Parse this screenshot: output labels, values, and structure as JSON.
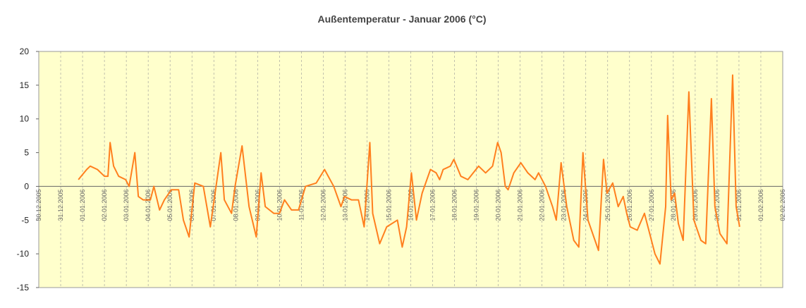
{
  "chart_data": {
    "type": "line",
    "title": "Außentemperatur - Januar 2006 (°C)",
    "ylim": [
      -15,
      20
    ],
    "yticks": [
      -15,
      -10,
      -5,
      0,
      5,
      10,
      15,
      20
    ],
    "xlim": [
      0,
      34
    ],
    "xticks": [
      {
        "value": 0,
        "label": "30.12.2005"
      },
      {
        "value": 1,
        "label": "31.12.2005"
      },
      {
        "value": 2,
        "label": "01.01.2006"
      },
      {
        "value": 3,
        "label": "02.01.2006"
      },
      {
        "value": 4,
        "label": "03.01.2006"
      },
      {
        "value": 5,
        "label": "04.01.2006"
      },
      {
        "value": 6,
        "label": "05.01.2006"
      },
      {
        "value": 7,
        "label": "06.01.2006"
      },
      {
        "value": 8,
        "label": "07.01.2006"
      },
      {
        "value": 9,
        "label": "08.01.2006"
      },
      {
        "value": 10,
        "label": "09.01.2006"
      },
      {
        "value": 11,
        "label": "10.01.2006"
      },
      {
        "value": 12,
        "label": "11.01.2006"
      },
      {
        "value": 13,
        "label": "12.01.2006"
      },
      {
        "value": 14,
        "label": "13.01.2006"
      },
      {
        "value": 15,
        "label": "14.01.2006"
      },
      {
        "value": 16,
        "label": "15.01.2006"
      },
      {
        "value": 17,
        "label": "16.01.2006"
      },
      {
        "value": 18,
        "label": "17.01.2006"
      },
      {
        "value": 19,
        "label": "18.01.2006"
      },
      {
        "value": 20,
        "label": "19.01.2006"
      },
      {
        "value": 21,
        "label": "20.01.2006"
      },
      {
        "value": 22,
        "label": "21.01.2006"
      },
      {
        "value": 23,
        "label": "22.01.2006"
      },
      {
        "value": 24,
        "label": "23.01.2006"
      },
      {
        "value": 25,
        "label": "24.01.2006"
      },
      {
        "value": 26,
        "label": "25.01.2006"
      },
      {
        "value": 27,
        "label": "26.01.2006"
      },
      {
        "value": 28,
        "label": "27.01.2006"
      },
      {
        "value": 29,
        "label": "28.01.2006"
      },
      {
        "value": 30,
        "label": "29.01.2006"
      },
      {
        "value": 31,
        "label": "30.01.2006"
      },
      {
        "value": 32,
        "label": "31.01.2006"
      },
      {
        "value": 33,
        "label": "01.02.2006"
      },
      {
        "value": 34,
        "label": "02.02.2006"
      }
    ],
    "grid": true,
    "background": "#ffffcc",
    "series": [
      {
        "color": "#ff7f1e",
        "x": [
          1.81,
          2.19,
          2.35,
          2.68,
          3.0,
          3.16,
          3.26,
          3.42,
          3.65,
          3.97,
          4.13,
          4.39,
          4.55,
          4.77,
          5.1,
          5.26,
          5.52,
          5.74,
          6.06,
          6.39,
          6.61,
          6.87,
          7.13,
          7.52,
          7.84,
          8.32,
          8.48,
          8.81,
          8.97,
          9.29,
          9.61,
          9.94,
          10.16,
          10.35,
          10.74,
          11.0,
          11.23,
          11.55,
          11.87,
          12.19,
          12.68,
          13.06,
          13.48,
          13.81,
          13.97,
          14.29,
          14.61,
          14.87,
          15.13,
          15.26,
          15.58,
          15.9,
          16.39,
          16.61,
          16.81,
          17.03,
          17.26,
          17.52,
          17.9,
          18.16,
          18.32,
          18.48,
          18.81,
          18.97,
          19.29,
          19.61,
          20.1,
          20.42,
          20.74,
          20.97,
          21.13,
          21.32,
          21.45,
          21.71,
          22.03,
          22.35,
          22.68,
          22.84,
          23.16,
          23.48,
          23.65,
          23.87,
          24.13,
          24.45,
          24.68,
          24.87,
          25.1,
          25.42,
          25.58,
          25.81,
          25.97,
          26.23,
          26.48,
          26.71,
          26.87,
          27.03,
          27.35,
          27.68,
          27.84,
          28.16,
          28.39,
          28.65,
          28.74,
          28.9,
          29.06,
          29.23,
          29.45,
          29.71,
          29.94,
          30.26,
          30.48,
          30.74,
          30.9,
          31.13,
          31.45,
          31.71,
          31.87,
          32.03
        ],
        "values": [
          1,
          2.5,
          3,
          2.5,
          1.5,
          1.5,
          6.5,
          3,
          1.5,
          1,
          0,
          5,
          -1.5,
          -2,
          -2,
          0,
          -3.5,
          -2,
          -0.5,
          -0.5,
          -5,
          -7.5,
          0.5,
          0,
          -6,
          5,
          -2,
          -4,
          0,
          6,
          -3,
          -7.5,
          2,
          -3,
          -4,
          -4,
          -2,
          -3.5,
          -3.5,
          0,
          0.5,
          2.5,
          0,
          -3,
          -1.5,
          -2,
          -2,
          -6,
          6.5,
          -4,
          -8.5,
          -6,
          -5,
          -9,
          -6,
          2,
          -5,
          -1,
          2.5,
          2,
          1,
          2.5,
          3,
          4,
          1.5,
          1,
          3,
          2,
          3,
          6.5,
          5,
          0,
          -0.5,
          2,
          3.5,
          2,
          1,
          2,
          0,
          -3,
          -5,
          3.5,
          -3,
          -8,
          -9,
          5,
          -5,
          -8,
          -9.5,
          4,
          -1,
          0.5,
          -3,
          -1.5,
          -4,
          -6,
          -6.5,
          -4,
          -6,
          -10,
          -11.5,
          -3,
          10.5,
          -2,
          -1,
          -5.5,
          -8,
          14,
          -5,
          -8,
          -8.5,
          13,
          -3,
          -7,
          -8.5,
          16.5,
          -3,
          -6
        ]
      }
    ]
  }
}
